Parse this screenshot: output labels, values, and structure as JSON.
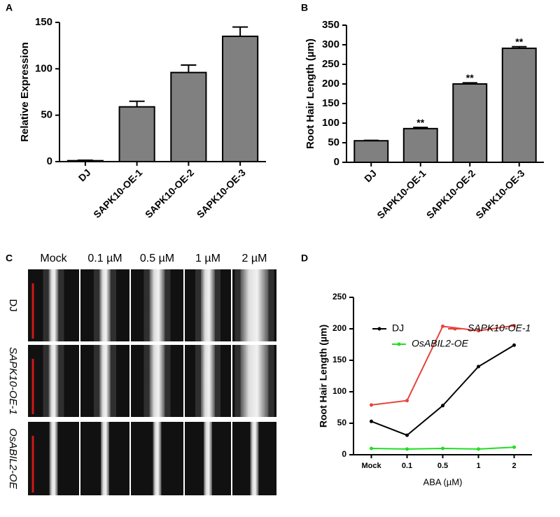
{
  "chart_data": [
    {
      "type": "bar",
      "panel_label": "A",
      "y_label": "Relative Expression",
      "categories": [
        "DJ",
        "SAPK10-OE-1",
        "SAPK10-OE-2",
        "SAPK10-OE-3"
      ],
      "values": [
        1,
        59,
        96,
        135
      ],
      "errors": [
        0.5,
        6,
        8,
        10
      ],
      "color": "#808080",
      "ylim": [
        0,
        150
      ],
      "yticks": [
        0,
        50,
        100,
        150
      ]
    },
    {
      "type": "bar",
      "panel_label": "B",
      "y_label": "Root Hair Length (µm)",
      "categories": [
        "DJ",
        "SAPK10-OE-1",
        "SAPK10-OE-2",
        "SAPK10-OE-3"
      ],
      "values": [
        55,
        86,
        200,
        291
      ],
      "errors": [
        1,
        3,
        3,
        4
      ],
      "significance": [
        null,
        "**",
        "**",
        "**"
      ],
      "color": "#808080",
      "ylim": [
        0,
        350
      ],
      "yticks": [
        0,
        50,
        100,
        150,
        200,
        250,
        300,
        350
      ]
    },
    {
      "type": "line",
      "panel_label": "D",
      "y_label": "Root Hair Length (µm)",
      "x_label": "ABA (µM)",
      "categories": [
        "Mock",
        "0.1",
        "0.5",
        "1",
        "2"
      ],
      "series": [
        {
          "name": "DJ",
          "color": "#000000",
          "values": [
            53,
            31,
            78,
            140,
            174
          ]
        },
        {
          "name": "SAPK10-OE-1",
          "color": "#e8423c",
          "values": [
            79,
            86,
            204,
            197,
            205
          ]
        },
        {
          "name": "OsABIL2-OE",
          "color": "#22dd22",
          "values": [
            10,
            9,
            10,
            9,
            12
          ]
        }
      ],
      "ylim": [
        0,
        250
      ],
      "yticks": [
        0,
        50,
        100,
        150,
        200,
        250
      ]
    }
  ],
  "image_panel": {
    "panel_label": "C",
    "columns": [
      "Mock",
      "0.1 µM",
      "0.5 µM",
      "1 µM",
      "2 µM"
    ],
    "rows": [
      "DJ",
      "SAPK10-OE-1",
      "OsABIL2-OE"
    ]
  }
}
